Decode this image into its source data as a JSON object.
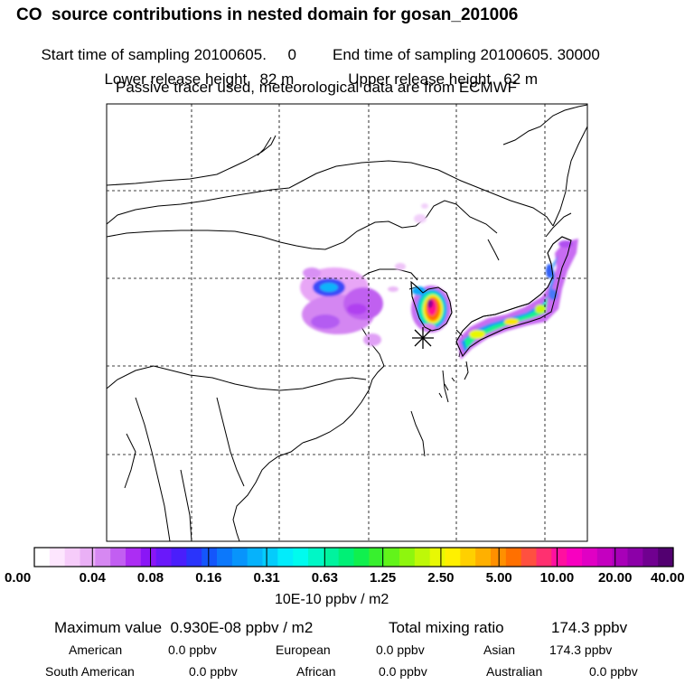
{
  "header": {
    "title": "CO  source contributions in nested domain for gosan_201006",
    "start_label": "Start time of sampling 20100605.     0",
    "end_label": "End time of sampling 20100605. 30000",
    "lower_label": "Lower release height   82 m",
    "upper_label": "Upper release height   62 m",
    "note": "Passive tracer used, meteorological data are from ECMWF"
  },
  "colorbar": {
    "ticks": [
      "0.00",
      "0.04",
      "0.08",
      "0.16",
      "0.31",
      "0.63",
      "1.25",
      "2.50",
      "5.00",
      "10.00",
      "20.00",
      "40.00"
    ],
    "unit": "10E-10 ppbv / m2",
    "colors": [
      "#ffffff",
      "#fde6fe",
      "#f6ccfa",
      "#eab0f6",
      "#d688f2",
      "#c25ef2",
      "#ac2df3",
      "#8a16f6",
      "#6a18fa",
      "#4a1efb",
      "#2a34fb",
      "#1456fb",
      "#0c78fb",
      "#0894fb",
      "#06b2fb",
      "#04ccfb",
      "#02ecfb",
      "#00fbee",
      "#00f7c6",
      "#00f39e",
      "#00f076",
      "#10f04e",
      "#38f02e",
      "#62f41a",
      "#8ef60e",
      "#bef808",
      "#e8f804",
      "#fff000",
      "#ffd000",
      "#ffb000",
      "#ff9000",
      "#ff7000",
      "#ff5040",
      "#ff3070",
      "#ff10a0",
      "#f800c0",
      "#e000c4",
      "#c400c0",
      "#a800b8",
      "#8c00a8",
      "#700090",
      "#520070"
    ]
  },
  "stats": {
    "max_label": "Maximum value  0.930E-08 ppbv / m2",
    "total_label": "Total mixing ratio",
    "total_value": "174.3 ppbv"
  },
  "regions": [
    {
      "name": "American",
      "value": "0.0 ppbv"
    },
    {
      "name": "European",
      "value": "0.0 ppbv"
    },
    {
      "name": "Asian",
      "value": "174.3 ppbv"
    },
    {
      "name": "South American",
      "value": "0.0 ppbv"
    },
    {
      "name": "African",
      "value": "0.0 ppbv"
    },
    {
      "name": "Australian",
      "value": "0.0 ppbv"
    }
  ],
  "map": {
    "receptor_marker": "asterisk",
    "gridlines": "dashed"
  }
}
